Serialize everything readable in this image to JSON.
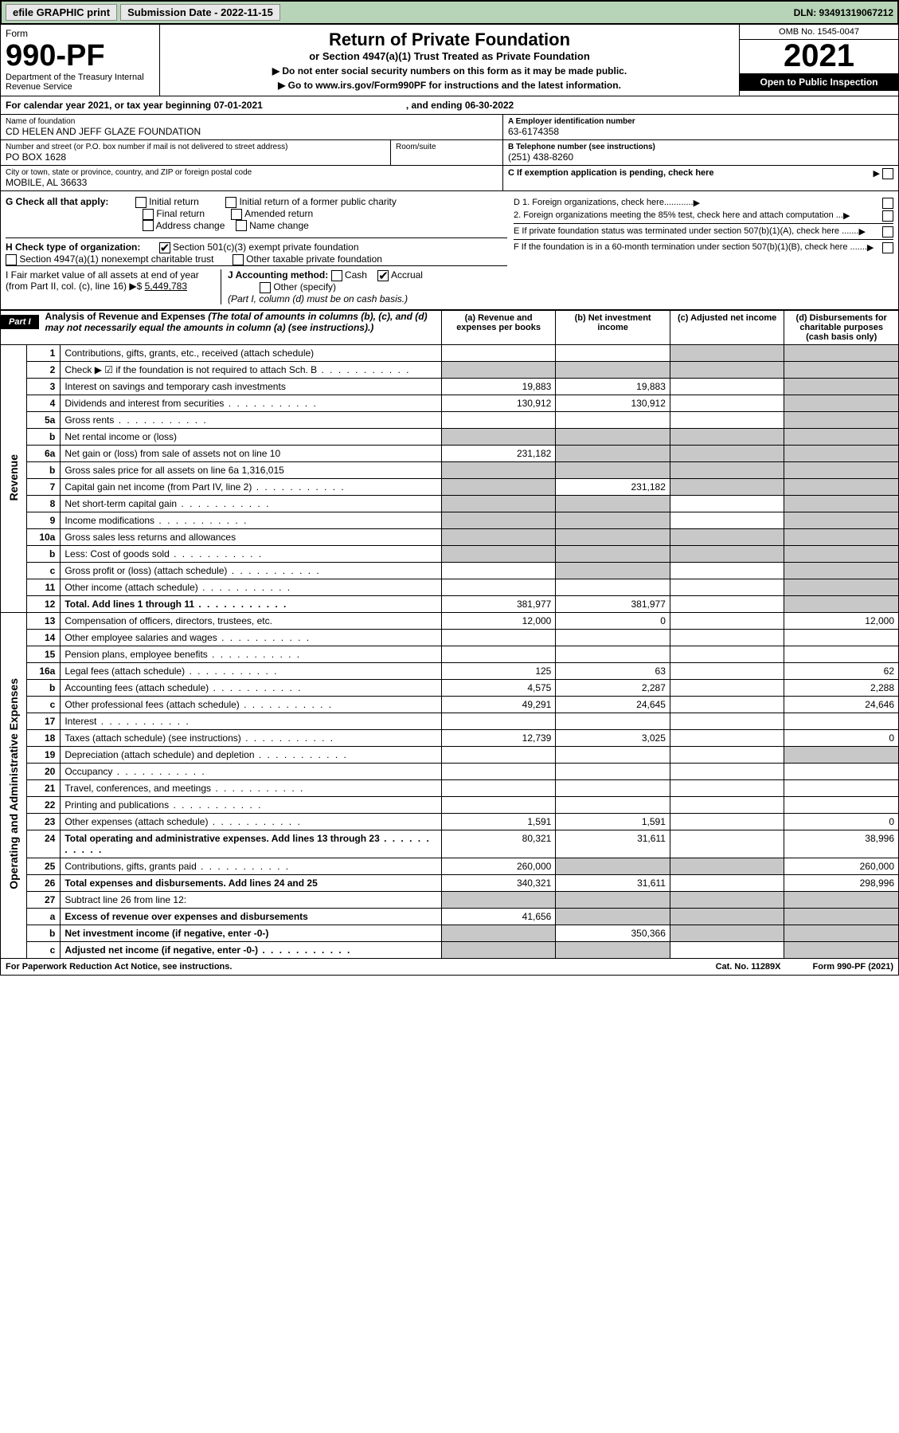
{
  "topbar": {
    "efile": "efile GRAPHIC print",
    "submission": "Submission Date - 2022-11-15",
    "dln": "DLN: 93491319067212"
  },
  "header": {
    "form": "Form",
    "form_num": "990-PF",
    "dept": "Department of the Treasury\nInternal Revenue Service",
    "title": "Return of Private Foundation",
    "subtitle": "or Section 4947(a)(1) Trust Treated as Private Foundation",
    "warn": "▶ Do not enter social security numbers on this form as it may be made public.",
    "goto": "▶ Go to www.irs.gov/Form990PF for instructions and the latest information.",
    "omb": "OMB No. 1545-0047",
    "year": "2021",
    "open": "Open to Public Inspection"
  },
  "year_row": {
    "pre": "For calendar year 2021, or tax year beginning 07-01-2021",
    "post": ", and ending 06-30-2022"
  },
  "info": {
    "name_lbl": "Name of foundation",
    "name": "CD HELEN AND JEFF GLAZE FOUNDATION",
    "addr_lbl": "Number and street (or P.O. box number if mail is not delivered to street address)",
    "addr": "PO BOX 1628",
    "room_lbl": "Room/suite",
    "city_lbl": "City or town, state or province, country, and ZIP or foreign postal code",
    "city": "MOBILE, AL  36633",
    "ein_lbl": "A Employer identification number",
    "ein": "63-6174358",
    "tel_lbl": "B Telephone number (see instructions)",
    "tel": "(251) 438-8260",
    "c_lbl": "C If exemption application is pending, check here",
    "d1": "D 1. Foreign organizations, check here............",
    "d2": "2. Foreign organizations meeting the 85% test, check here and attach computation ...",
    "e": "E  If private foundation status was terminated under section 507(b)(1)(A), check here .......",
    "f": "F  If the foundation is in a 60-month termination under section 507(b)(1)(B), check here .......",
    "g": "G Check all that apply:",
    "g_opts": [
      "Initial return",
      "Initial return of a former public charity",
      "Final return",
      "Amended return",
      "Address change",
      "Name change"
    ],
    "h": "H Check type of organization:",
    "h1": "Section 501(c)(3) exempt private foundation",
    "h2": "Section 4947(a)(1) nonexempt charitable trust",
    "h3": "Other taxable private foundation",
    "i": "I Fair market value of all assets at end of year (from Part II, col. (c), line 16) ▶$",
    "i_val": "5,449,783",
    "j": "J Accounting method:",
    "j_cash": "Cash",
    "j_acc": "Accrual",
    "j_oth": "Other (specify)",
    "j_note": "(Part I, column (d) must be on cash basis.)"
  },
  "part1": {
    "tag": "Part I",
    "title": "Analysis of Revenue and Expenses",
    "note": "(The total of amounts in columns (b), (c), and (d) may not necessarily equal the amounts in column (a) (see instructions).)",
    "col_a": "(a)  Revenue and expenses per books",
    "col_b": "(b)  Net investment income",
    "col_c": "(c)  Adjusted net income",
    "col_d": "(d)  Disbursements for charitable purposes (cash basis only)",
    "revenue": "Revenue",
    "expenses": "Operating and Administrative Expenses"
  },
  "rows": [
    {
      "n": "1",
      "d": "Contributions, gifts, grants, etc., received (attach schedule)",
      "a": "",
      "b": "",
      "greyC": true,
      "greyD": true
    },
    {
      "n": "2",
      "d": "Check ▶ ☑ if the foundation is not required to attach Sch. B",
      "greyA": true,
      "greyB": true,
      "greyC": true,
      "greyD": true,
      "dots": true
    },
    {
      "n": "3",
      "d": "Interest on savings and temporary cash investments",
      "a": "19,883",
      "b": "19,883",
      "greyD": true
    },
    {
      "n": "4",
      "d": "Dividends and interest from securities",
      "a": "130,912",
      "b": "130,912",
      "greyD": true,
      "dots": true
    },
    {
      "n": "5a",
      "d": "Gross rents",
      "greyD": true,
      "dots": true
    },
    {
      "n": "b",
      "d": "Net rental income or (loss)",
      "greyA": true,
      "greyB": true,
      "greyC": true,
      "greyD": true
    },
    {
      "n": "6a",
      "d": "Net gain or (loss) from sale of assets not on line 10",
      "a": "231,182",
      "greyB": true,
      "greyC": true,
      "greyD": true
    },
    {
      "n": "b",
      "d": "Gross sales price for all assets on line 6a  1,316,015",
      "greyA": true,
      "greyB": true,
      "greyC": true,
      "greyD": true
    },
    {
      "n": "7",
      "d": "Capital gain net income (from Part IV, line 2)",
      "greyA": true,
      "b": "231,182",
      "greyC": true,
      "greyD": true,
      "dots": true
    },
    {
      "n": "8",
      "d": "Net short-term capital gain",
      "greyA": true,
      "greyB": true,
      "greyD": true,
      "dots": true
    },
    {
      "n": "9",
      "d": "Income modifications",
      "greyA": true,
      "greyB": true,
      "greyD": true,
      "dots": true
    },
    {
      "n": "10a",
      "d": "Gross sales less returns and allowances",
      "greyA": true,
      "greyB": true,
      "greyC": true,
      "greyD": true
    },
    {
      "n": "b",
      "d": "Less: Cost of goods sold",
      "greyA": true,
      "greyB": true,
      "greyC": true,
      "greyD": true,
      "dots": true
    },
    {
      "n": "c",
      "d": "Gross profit or (loss) (attach schedule)",
      "greyB": true,
      "greyD": true,
      "dots": true
    },
    {
      "n": "11",
      "d": "Other income (attach schedule)",
      "greyD": true,
      "dots": true
    },
    {
      "n": "12",
      "d": "Total. Add lines 1 through 11",
      "a": "381,977",
      "b": "381,977",
      "greyD": true,
      "bold": true,
      "dots": true
    },
    {
      "n": "13",
      "d": "Compensation of officers, directors, trustees, etc.",
      "a": "12,000",
      "b": "0",
      "dd": "12,000"
    },
    {
      "n": "14",
      "d": "Other employee salaries and wages",
      "dots": true
    },
    {
      "n": "15",
      "d": "Pension plans, employee benefits",
      "dots": true
    },
    {
      "n": "16a",
      "d": "Legal fees (attach schedule)",
      "a": "125",
      "b": "63",
      "dd": "62",
      "dots": true
    },
    {
      "n": "b",
      "d": "Accounting fees (attach schedule)",
      "a": "4,575",
      "b": "2,287",
      "dd": "2,288",
      "dots": true
    },
    {
      "n": "c",
      "d": "Other professional fees (attach schedule)",
      "a": "49,291",
      "b": "24,645",
      "dd": "24,646",
      "dots": true
    },
    {
      "n": "17",
      "d": "Interest",
      "dots": true
    },
    {
      "n": "18",
      "d": "Taxes (attach schedule) (see instructions)",
      "a": "12,739",
      "b": "3,025",
      "dd": "0",
      "dots": true
    },
    {
      "n": "19",
      "d": "Depreciation (attach schedule) and depletion",
      "greyD": true,
      "dots": true
    },
    {
      "n": "20",
      "d": "Occupancy",
      "dots": true
    },
    {
      "n": "21",
      "d": "Travel, conferences, and meetings",
      "dots": true
    },
    {
      "n": "22",
      "d": "Printing and publications",
      "dots": true
    },
    {
      "n": "23",
      "d": "Other expenses (attach schedule)",
      "a": "1,591",
      "b": "1,591",
      "dd": "0",
      "dots": true
    },
    {
      "n": "24",
      "d": "Total operating and administrative expenses. Add lines 13 through 23",
      "a": "80,321",
      "b": "31,611",
      "dd": "38,996",
      "bold": true,
      "dots": true
    },
    {
      "n": "25",
      "d": "Contributions, gifts, grants paid",
      "a": "260,000",
      "greyB": true,
      "greyC": true,
      "dd": "260,000",
      "dots": true
    },
    {
      "n": "26",
      "d": "Total expenses and disbursements. Add lines 24 and 25",
      "a": "340,321",
      "b": "31,611",
      "dd": "298,996",
      "bold": true
    },
    {
      "n": "27",
      "d": "Subtract line 26 from line 12:",
      "greyA": true,
      "greyB": true,
      "greyC": true,
      "greyD": true
    },
    {
      "n": "a",
      "d": "Excess of revenue over expenses and disbursements",
      "a": "41,656",
      "greyB": true,
      "greyC": true,
      "greyD": true,
      "bold": true
    },
    {
      "n": "b",
      "d": "Net investment income (if negative, enter -0-)",
      "greyA": true,
      "b": "350,366",
      "greyC": true,
      "greyD": true,
      "bold": true
    },
    {
      "n": "c",
      "d": "Adjusted net income (if negative, enter -0-)",
      "greyA": true,
      "greyB": true,
      "greyD": true,
      "bold": true,
      "dots": true
    }
  ],
  "footer": {
    "l": "For Paperwork Reduction Act Notice, see instructions.",
    "c": "Cat. No. 11289X",
    "r": "Form 990-PF (2021)"
  }
}
